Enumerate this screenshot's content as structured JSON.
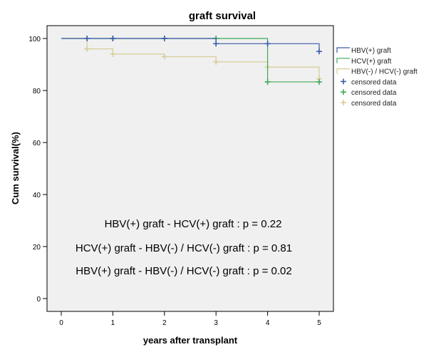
{
  "chart_data": {
    "type": "line",
    "title": "graft survival",
    "xlabel": "years after transplant",
    "ylabel": "Cum survival(%)",
    "xlim": [
      0,
      5
    ],
    "ylim": [
      0,
      100
    ],
    "xticks": [
      "0",
      "1",
      "2",
      "3",
      "4",
      "5"
    ],
    "yticks": [
      "0",
      "20",
      "40",
      "60",
      "80",
      "100"
    ],
    "grid": false,
    "legend_position": "right",
    "series": [
      {
        "name": "HBV(+) graft",
        "color": "#3b5ba9",
        "steps": [
          [
            0,
            100
          ],
          [
            3,
            98
          ],
          [
            5,
            95
          ]
        ],
        "censored": [
          [
            0.5,
            100
          ],
          [
            1,
            100
          ],
          [
            2,
            100
          ],
          [
            3,
            98
          ],
          [
            4,
            98
          ],
          [
            5,
            95
          ]
        ]
      },
      {
        "name": "HCV(+) graft",
        "color": "#3fa85a",
        "steps": [
          [
            0,
            100
          ],
          [
            4,
            83.3
          ]
        ],
        "censored": [
          [
            1,
            100
          ],
          [
            2,
            100
          ],
          [
            3,
            100
          ],
          [
            4,
            83.3
          ],
          [
            5,
            83.3
          ]
        ]
      },
      {
        "name": "HBV(-) / HCV(-) graft",
        "color": "#d7cc96",
        "steps": [
          [
            0,
            100
          ],
          [
            0.5,
            96
          ],
          [
            1,
            94
          ],
          [
            2,
            93
          ],
          [
            3,
            91
          ],
          [
            4,
            89
          ],
          [
            5,
            85
          ]
        ],
        "censored": [
          [
            0.5,
            96
          ],
          [
            1,
            94
          ],
          [
            2,
            93
          ],
          [
            3,
            91
          ],
          [
            4,
            89
          ],
          [
            5,
            84.5
          ]
        ]
      }
    ],
    "legend": [
      {
        "label": "HBV(+) graft",
        "color": "#3b5ba9",
        "kind": "line"
      },
      {
        "label": "HCV(+) graft",
        "color": "#3fa85a",
        "kind": "line"
      },
      {
        "label": "HBV(-) / HCV(-) graft",
        "color": "#d7cc96",
        "kind": "line"
      },
      {
        "label": "censored data",
        "color": "#3b5ba9",
        "kind": "cross"
      },
      {
        "label": "censored data",
        "color": "#3fa85a",
        "kind": "cross"
      },
      {
        "label": "censored data",
        "color": "#d7cc96",
        "kind": "cross"
      }
    ],
    "annotations": [
      "HBV(+) graft - HCV(+) graft : p = 0.22",
      "HCV(+) graft - HBV(-) / HCV(-) graft : p = 0.81",
      "HBV(+) graft - HBV(-) / HCV(-) graft : p = 0.02"
    ],
    "plot_background": "#f0f0f0"
  }
}
